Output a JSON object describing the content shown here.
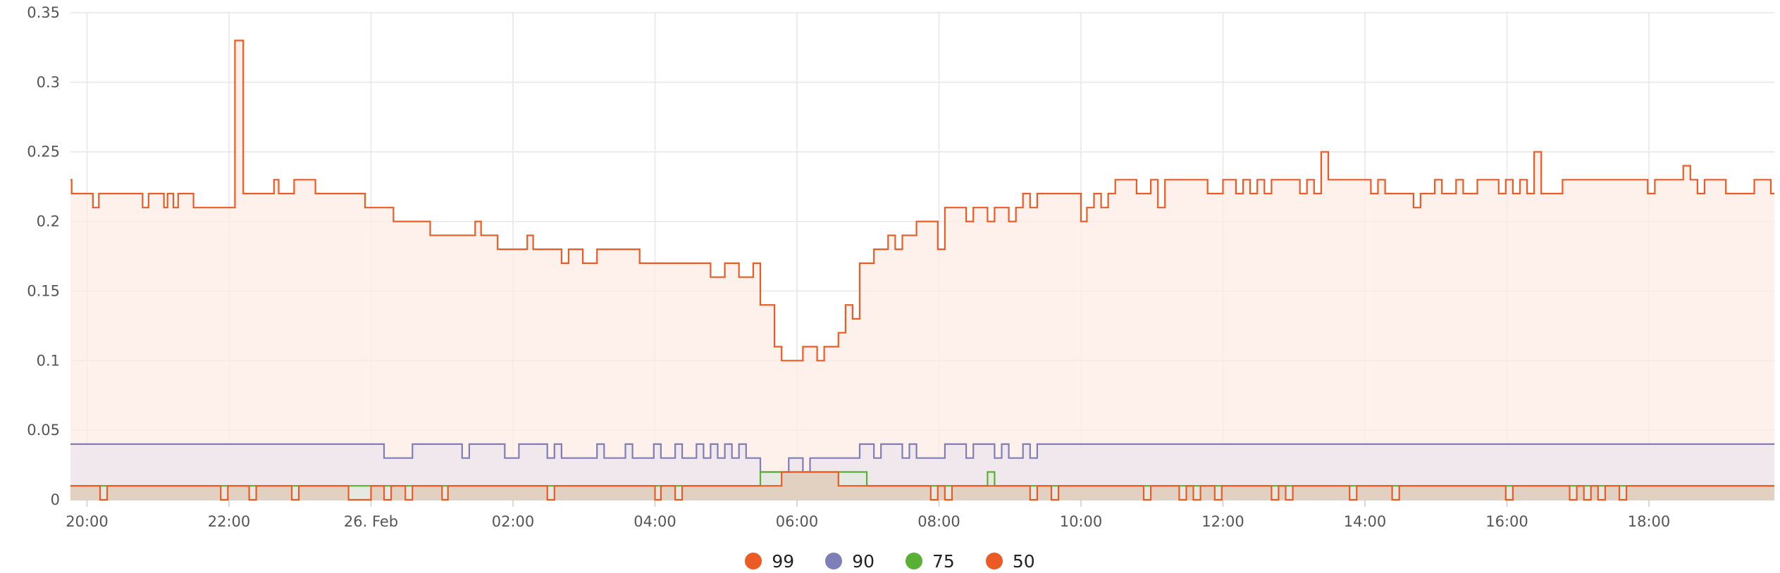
{
  "chart_data": {
    "type": "area",
    "step": true,
    "title": "",
    "xlabel": "",
    "ylabel": "",
    "x_start": "2024-02-25 19:46",
    "x_end": "2024-02-26 19:46",
    "ylim": [
      0,
      0.35
    ],
    "y_ticks": [
      {
        "value": 0,
        "label": "0"
      },
      {
        "value": 0.05,
        "label": "0.05"
      },
      {
        "value": 0.1,
        "label": "0.1"
      },
      {
        "value": 0.15,
        "label": "0.15"
      },
      {
        "value": 0.2,
        "label": "0.2"
      },
      {
        "value": 0.25,
        "label": "0.25"
      },
      {
        "value": 0.3,
        "label": "0.3"
      },
      {
        "value": 0.35,
        "label": "0.35"
      }
    ],
    "x_ticks": [
      {
        "time": "2024-02-25 20:00",
        "label": "20:00"
      },
      {
        "time": "2024-02-25 22:00",
        "label": "22:00"
      },
      {
        "time": "2024-02-26 00:00",
        "label": "26. Feb"
      },
      {
        "time": "2024-02-26 02:00",
        "label": "02:00"
      },
      {
        "time": "2024-02-26 04:00",
        "label": "04:00"
      },
      {
        "time": "2024-02-26 06:00",
        "label": "06:00"
      },
      {
        "time": "2024-02-26 08:00",
        "label": "08:00"
      },
      {
        "time": "2024-02-26 10:00",
        "label": "10:00"
      },
      {
        "time": "2024-02-26 12:00",
        "label": "12:00"
      },
      {
        "time": "2024-02-26 14:00",
        "label": "14:00"
      },
      {
        "time": "2024-02-26 16:00",
        "label": "16:00"
      },
      {
        "time": "2024-02-26 18:00",
        "label": "18:00"
      }
    ],
    "grid": true,
    "legend_position": "bottom-center",
    "series": [
      {
        "name": "99",
        "color": "#ec5b24",
        "fill": "#fdebe4",
        "points": [
          [
            "2024-02-25 19:46",
            0.23
          ],
          [
            "2024-02-25 19:47",
            0.22
          ],
          [
            "2024-02-25 20:05",
            0.21
          ],
          [
            "2024-02-25 20:10",
            0.22
          ],
          [
            "2024-02-25 20:47",
            0.21
          ],
          [
            "2024-02-25 20:52",
            0.22
          ],
          [
            "2024-02-25 21:05",
            0.21
          ],
          [
            "2024-02-25 21:08",
            0.22
          ],
          [
            "2024-02-25 21:13",
            0.21
          ],
          [
            "2024-02-25 21:17",
            0.22
          ],
          [
            "2024-02-25 21:30",
            0.21
          ],
          [
            "2024-02-25 22:05",
            0.33
          ],
          [
            "2024-02-25 22:12",
            0.22
          ],
          [
            "2024-02-25 22:38",
            0.23
          ],
          [
            "2024-02-25 22:42",
            0.22
          ],
          [
            "2024-02-25 22:55",
            0.23
          ],
          [
            "2024-02-25 23:13",
            0.22
          ],
          [
            "2024-02-25 23:55",
            0.21
          ],
          [
            "2024-02-26 00:19",
            0.2
          ],
          [
            "2024-02-26 00:50",
            0.19
          ],
          [
            "2024-02-26 01:28",
            0.2
          ],
          [
            "2024-02-26 01:33",
            0.19
          ],
          [
            "2024-02-26 01:47",
            0.18
          ],
          [
            "2024-02-26 02:12",
            0.19
          ],
          [
            "2024-02-26 02:17",
            0.18
          ],
          [
            "2024-02-26 02:41",
            0.17
          ],
          [
            "2024-02-26 02:47",
            0.18
          ],
          [
            "2024-02-26 02:59",
            0.17
          ],
          [
            "2024-02-26 03:11",
            0.18
          ],
          [
            "2024-02-26 03:47",
            0.17
          ],
          [
            "2024-02-26 04:47",
            0.16
          ],
          [
            "2024-02-26 04:59",
            0.17
          ],
          [
            "2024-02-26 05:11",
            0.16
          ],
          [
            "2024-02-26 05:23",
            0.17
          ],
          [
            "2024-02-26 05:29",
            0.14
          ],
          [
            "2024-02-26 05:41",
            0.11
          ],
          [
            "2024-02-26 05:47",
            0.1
          ],
          [
            "2024-02-26 06:05",
            0.11
          ],
          [
            "2024-02-26 06:17",
            0.1
          ],
          [
            "2024-02-26 06:23",
            0.11
          ],
          [
            "2024-02-26 06:35",
            0.12
          ],
          [
            "2024-02-26 06:41",
            0.14
          ],
          [
            "2024-02-26 06:47",
            0.13
          ],
          [
            "2024-02-26 06:53",
            0.17
          ],
          [
            "2024-02-26 07:05",
            0.18
          ],
          [
            "2024-02-26 07:17",
            0.19
          ],
          [
            "2024-02-26 07:23",
            0.18
          ],
          [
            "2024-02-26 07:29",
            0.19
          ],
          [
            "2024-02-26 07:41",
            0.2
          ],
          [
            "2024-02-26 07:59",
            0.18
          ],
          [
            "2024-02-26 08:05",
            0.21
          ],
          [
            "2024-02-26 08:23",
            0.2
          ],
          [
            "2024-02-26 08:29",
            0.21
          ],
          [
            "2024-02-26 08:41",
            0.2
          ],
          [
            "2024-02-26 08:47",
            0.21
          ],
          [
            "2024-02-26 08:59",
            0.2
          ],
          [
            "2024-02-26 09:05",
            0.21
          ],
          [
            "2024-02-26 09:11",
            0.22
          ],
          [
            "2024-02-26 09:17",
            0.21
          ],
          [
            "2024-02-26 09:23",
            0.22
          ],
          [
            "2024-02-26 10:00",
            0.2
          ],
          [
            "2024-02-26 10:05",
            0.21
          ],
          [
            "2024-02-26 10:11",
            0.22
          ],
          [
            "2024-02-26 10:17",
            0.21
          ],
          [
            "2024-02-26 10:23",
            0.22
          ],
          [
            "2024-02-26 10:29",
            0.23
          ],
          [
            "2024-02-26 10:47",
            0.22
          ],
          [
            "2024-02-26 10:59",
            0.23
          ],
          [
            "2024-02-26 11:05",
            0.21
          ],
          [
            "2024-02-26 11:11",
            0.23
          ],
          [
            "2024-02-26 11:47",
            0.22
          ],
          [
            "2024-02-26 12:00",
            0.23
          ],
          [
            "2024-02-26 12:11",
            0.22
          ],
          [
            "2024-02-26 12:17",
            0.23
          ],
          [
            "2024-02-26 12:23",
            0.22
          ],
          [
            "2024-02-26 12:29",
            0.23
          ],
          [
            "2024-02-26 12:35",
            0.22
          ],
          [
            "2024-02-26 12:41",
            0.23
          ],
          [
            "2024-02-26 13:05",
            0.22
          ],
          [
            "2024-02-26 13:11",
            0.23
          ],
          [
            "2024-02-26 13:17",
            0.22
          ],
          [
            "2024-02-26 13:23",
            0.25
          ],
          [
            "2024-02-26 13:29",
            0.23
          ],
          [
            "2024-02-26 14:05",
            0.22
          ],
          [
            "2024-02-26 14:11",
            0.23
          ],
          [
            "2024-02-26 14:17",
            0.22
          ],
          [
            "2024-02-26 14:41",
            0.21
          ],
          [
            "2024-02-26 14:47",
            0.22
          ],
          [
            "2024-02-26 14:59",
            0.23
          ],
          [
            "2024-02-26 15:05",
            0.22
          ],
          [
            "2024-02-26 15:17",
            0.23
          ],
          [
            "2024-02-26 15:23",
            0.22
          ],
          [
            "2024-02-26 15:35",
            0.23
          ],
          [
            "2024-02-26 15:53",
            0.22
          ],
          [
            "2024-02-26 15:59",
            0.23
          ],
          [
            "2024-02-26 16:05",
            0.22
          ],
          [
            "2024-02-26 16:11",
            0.23
          ],
          [
            "2024-02-26 16:17",
            0.22
          ],
          [
            "2024-02-26 16:23",
            0.25
          ],
          [
            "2024-02-26 16:29",
            0.22
          ],
          [
            "2024-02-26 16:47",
            0.23
          ],
          [
            "2024-02-26 17:59",
            0.22
          ],
          [
            "2024-02-26 18:05",
            0.23
          ],
          [
            "2024-02-26 18:29",
            0.24
          ],
          [
            "2024-02-26 18:35",
            0.23
          ],
          [
            "2024-02-26 18:41",
            0.22
          ],
          [
            "2024-02-26 18:47",
            0.23
          ],
          [
            "2024-02-26 19:05",
            0.22
          ],
          [
            "2024-02-26 19:29",
            0.23
          ],
          [
            "2024-02-26 19:43",
            0.22
          ]
        ]
      },
      {
        "name": "90",
        "color": "#7e7eb8",
        "fill": "#ece6ee",
        "points": [
          [
            "2024-02-25 19:46",
            0.04
          ],
          [
            "2024-02-26 00:11",
            0.03
          ],
          [
            "2024-02-26 00:35",
            0.04
          ],
          [
            "2024-02-26 01:17",
            0.03
          ],
          [
            "2024-02-26 01:23",
            0.04
          ],
          [
            "2024-02-26 01:53",
            0.03
          ],
          [
            "2024-02-26 02:05",
            0.04
          ],
          [
            "2024-02-26 02:29",
            0.03
          ],
          [
            "2024-02-26 02:35",
            0.04
          ],
          [
            "2024-02-26 02:41",
            0.03
          ],
          [
            "2024-02-26 03:11",
            0.04
          ],
          [
            "2024-02-26 03:17",
            0.03
          ],
          [
            "2024-02-26 03:35",
            0.04
          ],
          [
            "2024-02-26 03:41",
            0.03
          ],
          [
            "2024-02-26 03:59",
            0.04
          ],
          [
            "2024-02-26 04:05",
            0.03
          ],
          [
            "2024-02-26 04:17",
            0.04
          ],
          [
            "2024-02-26 04:23",
            0.03
          ],
          [
            "2024-02-26 04:35",
            0.04
          ],
          [
            "2024-02-26 04:41",
            0.03
          ],
          [
            "2024-02-26 04:47",
            0.04
          ],
          [
            "2024-02-26 04:53",
            0.03
          ],
          [
            "2024-02-26 04:59",
            0.04
          ],
          [
            "2024-02-26 05:05",
            0.03
          ],
          [
            "2024-02-26 05:11",
            0.04
          ],
          [
            "2024-02-26 05:17",
            0.03
          ],
          [
            "2024-02-26 05:29",
            0.02
          ],
          [
            "2024-02-26 05:53",
            0.03
          ],
          [
            "2024-02-26 06:05",
            0.02
          ],
          [
            "2024-02-26 06:11",
            0.03
          ],
          [
            "2024-02-26 06:53",
            0.04
          ],
          [
            "2024-02-26 07:05",
            0.03
          ],
          [
            "2024-02-26 07:11",
            0.04
          ],
          [
            "2024-02-26 07:29",
            0.03
          ],
          [
            "2024-02-26 07:35",
            0.04
          ],
          [
            "2024-02-26 07:41",
            0.03
          ],
          [
            "2024-02-26 08:05",
            0.04
          ],
          [
            "2024-02-26 08:23",
            0.03
          ],
          [
            "2024-02-26 08:29",
            0.04
          ],
          [
            "2024-02-26 08:47",
            0.03
          ],
          [
            "2024-02-26 08:53",
            0.04
          ],
          [
            "2024-02-26 08:59",
            0.03
          ],
          [
            "2024-02-26 09:11",
            0.04
          ],
          [
            "2024-02-26 09:17",
            0.03
          ],
          [
            "2024-02-26 09:23",
            0.04
          ],
          [
            "2024-02-26 19:46",
            0.04
          ]
        ]
      },
      {
        "name": "75",
        "color": "#58b135",
        "fill": "#e2eadc",
        "points": [
          [
            "2024-02-25 19:46",
            0.01
          ],
          [
            "2024-02-26 05:29",
            0.02
          ],
          [
            "2024-02-26 06:59",
            0.01
          ],
          [
            "2024-02-26 08:41",
            0.02
          ],
          [
            "2024-02-26 08:47",
            0.01
          ],
          [
            "2024-02-26 19:46",
            0.01
          ]
        ]
      },
      {
        "name": "50",
        "color": "#ec5b24",
        "fill": "#e0c8b4",
        "points": [
          [
            "2024-02-25 19:46",
            0.01
          ],
          [
            "2024-02-25 20:11",
            0
          ],
          [
            "2024-02-25 20:17",
            0.01
          ],
          [
            "2024-02-25 21:53",
            0
          ],
          [
            "2024-02-25 21:59",
            0.01
          ],
          [
            "2024-02-25 22:17",
            0
          ],
          [
            "2024-02-25 22:23",
            0.01
          ],
          [
            "2024-02-25 22:53",
            0
          ],
          [
            "2024-02-25 22:59",
            0.01
          ],
          [
            "2024-02-25 23:41",
            0
          ],
          [
            "2024-02-26 00:00",
            0.01
          ],
          [
            "2024-02-26 00:11",
            0
          ],
          [
            "2024-02-26 00:17",
            0.01
          ],
          [
            "2024-02-26 00:29",
            0
          ],
          [
            "2024-02-26 00:35",
            0.01
          ],
          [
            "2024-02-26 01:00",
            0
          ],
          [
            "2024-02-26 01:05",
            0.01
          ],
          [
            "2024-02-26 02:29",
            0
          ],
          [
            "2024-02-26 02:35",
            0.01
          ],
          [
            "2024-02-26 04:00",
            0
          ],
          [
            "2024-02-26 04:05",
            0.01
          ],
          [
            "2024-02-26 04:17",
            0
          ],
          [
            "2024-02-26 04:23",
            0.01
          ],
          [
            "2024-02-26 05:47",
            0.02
          ],
          [
            "2024-02-26 06:35",
            0.01
          ],
          [
            "2024-02-26 07:53",
            0
          ],
          [
            "2024-02-26 07:59",
            0.01
          ],
          [
            "2024-02-26 08:05",
            0
          ],
          [
            "2024-02-26 08:11",
            0.01
          ],
          [
            "2024-02-26 09:17",
            0
          ],
          [
            "2024-02-26 09:23",
            0.01
          ],
          [
            "2024-02-26 09:35",
            0
          ],
          [
            "2024-02-26 09:41",
            0.01
          ],
          [
            "2024-02-26 10:53",
            0
          ],
          [
            "2024-02-26 10:59",
            0.01
          ],
          [
            "2024-02-26 11:23",
            0
          ],
          [
            "2024-02-26 11:29",
            0.01
          ],
          [
            "2024-02-26 11:35",
            0
          ],
          [
            "2024-02-26 11:41",
            0.01
          ],
          [
            "2024-02-26 11:53",
            0
          ],
          [
            "2024-02-26 11:59",
            0.01
          ],
          [
            "2024-02-26 12:41",
            0
          ],
          [
            "2024-02-26 12:47",
            0.01
          ],
          [
            "2024-02-26 12:53",
            0
          ],
          [
            "2024-02-26 12:59",
            0.01
          ],
          [
            "2024-02-26 13:47",
            0
          ],
          [
            "2024-02-26 13:53",
            0.01
          ],
          [
            "2024-02-26 14:23",
            0
          ],
          [
            "2024-02-26 14:29",
            0.01
          ],
          [
            "2024-02-26 15:59",
            0
          ],
          [
            "2024-02-26 16:05",
            0.01
          ],
          [
            "2024-02-26 16:53",
            0
          ],
          [
            "2024-02-26 16:59",
            0.01
          ],
          [
            "2024-02-26 17:05",
            0
          ],
          [
            "2024-02-26 17:11",
            0.01
          ],
          [
            "2024-02-26 17:17",
            0
          ],
          [
            "2024-02-26 17:23",
            0.01
          ],
          [
            "2024-02-26 17:35",
            0
          ],
          [
            "2024-02-26 17:41",
            0.01
          ],
          [
            "2024-02-26 19:46",
            0.01
          ]
        ]
      }
    ]
  }
}
